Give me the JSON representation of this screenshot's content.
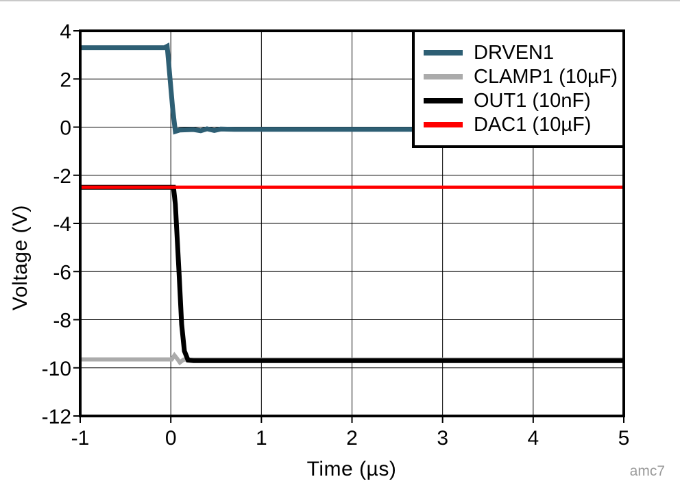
{
  "chart_data": {
    "type": "line",
    "title": "",
    "xlabel": "Time (µs)",
    "ylabel": "Voltage (V)",
    "xlim": [
      -1,
      5
    ],
    "ylim": [
      -12,
      4
    ],
    "xticks": [
      -1,
      0,
      1,
      2,
      3,
      4,
      5
    ],
    "yticks": [
      4,
      2,
      0,
      -2,
      -4,
      -6,
      -8,
      -10,
      -12
    ],
    "grid": true,
    "legend_position": "top-right",
    "watermark": "amc7",
    "axis_color": "#000000",
    "grid_color": "#000000",
    "series": [
      {
        "name": "DRVEN1",
        "color": "#2E5F74",
        "width": 7,
        "points": [
          [
            -1,
            3.3
          ],
          [
            -0.07,
            3.3
          ],
          [
            -0.04,
            3.36
          ],
          [
            0.02,
            0.8
          ],
          [
            0.05,
            -0.18
          ],
          [
            0.1,
            -0.12
          ],
          [
            0.25,
            -0.1
          ],
          [
            0.33,
            -0.15
          ],
          [
            0.4,
            -0.07
          ],
          [
            0.48,
            -0.14
          ],
          [
            0.55,
            -0.08
          ],
          [
            0.7,
            -0.09
          ],
          [
            5,
            -0.09
          ]
        ]
      },
      {
        "name": "CLAMP1 (10µF)",
        "color": "#ABABAB",
        "width": 6,
        "points": [
          [
            -1,
            -9.65
          ],
          [
            0.01,
            -9.65
          ],
          [
            0.04,
            -9.48
          ],
          [
            0.07,
            -9.62
          ],
          [
            0.1,
            -9.78
          ],
          [
            0.14,
            -9.66
          ],
          [
            5,
            -9.66
          ]
        ]
      },
      {
        "name": "OUT1 (10nF)",
        "color": "#000000",
        "width": 7,
        "points": [
          [
            -1,
            -2.5
          ],
          [
            0.03,
            -2.5
          ],
          [
            0.05,
            -3.2
          ],
          [
            0.09,
            -6.0
          ],
          [
            0.12,
            -8.2
          ],
          [
            0.15,
            -9.3
          ],
          [
            0.19,
            -9.68
          ],
          [
            0.25,
            -9.7
          ],
          [
            5,
            -9.7
          ]
        ]
      },
      {
        "name": "DAC1 (10µF)",
        "color": "#FF0000",
        "width": 5,
        "points": [
          [
            -1,
            -2.5
          ],
          [
            5,
            -2.5
          ]
        ]
      }
    ]
  }
}
